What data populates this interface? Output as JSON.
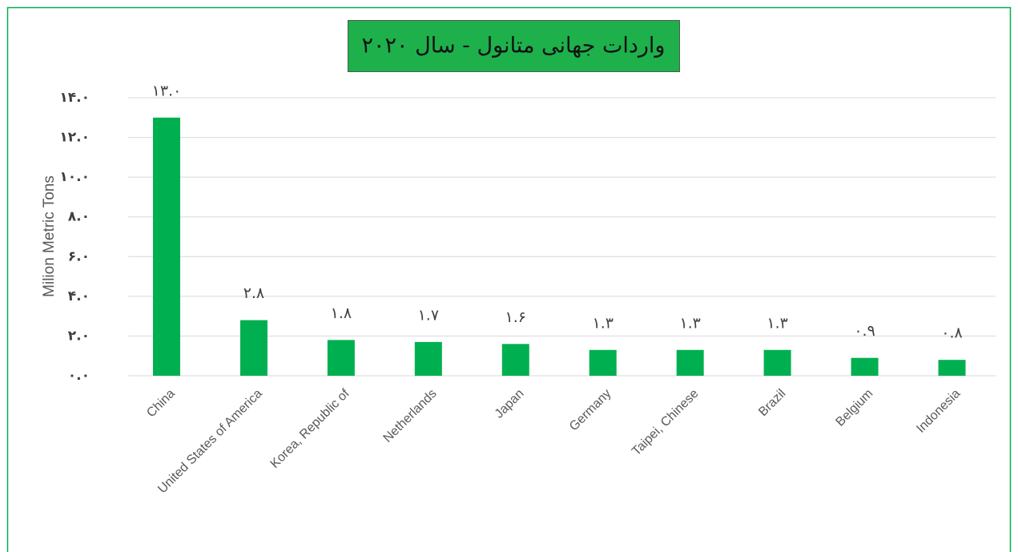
{
  "chart_data": {
    "type": "bar",
    "title": "واردات جهانی متانول - سال ۲۰۲۰",
    "y_label": "Milion Metric Tons",
    "categories": [
      "China",
      "United States of America",
      "Korea, Republic of",
      "Netherlands",
      "Japan",
      "Germany",
      "Taipei, Chinese",
      "Brazil",
      "Belgium",
      "Indonesia"
    ],
    "values": [
      13.0,
      2.8,
      1.8,
      1.7,
      1.6,
      1.3,
      1.3,
      1.3,
      0.9,
      0.8
    ],
    "value_labels": [
      "۱۳.۰",
      "۲.۸",
      "۱.۸",
      "۱.۷",
      "۱.۶",
      "۱.۳",
      "۱.۳",
      "۱.۳",
      "۰.۹",
      "۰.۸"
    ],
    "color": "#00b050",
    "ylim": [
      0,
      14
    ],
    "yticks": [
      {
        "value": 0,
        "label": "۰.۰"
      },
      {
        "value": 2,
        "label": "۲.۰"
      },
      {
        "value": 4,
        "label": "۴.۰"
      },
      {
        "value": 6,
        "label": "۶.۰"
      },
      {
        "value": 8,
        "label": "۸.۰"
      },
      {
        "value": 10,
        "label": "۱۰.۰"
      },
      {
        "value": 12,
        "label": "۱۲.۰"
      },
      {
        "value": 14,
        "label": "۱۴.۰"
      }
    ],
    "grid": true
  }
}
